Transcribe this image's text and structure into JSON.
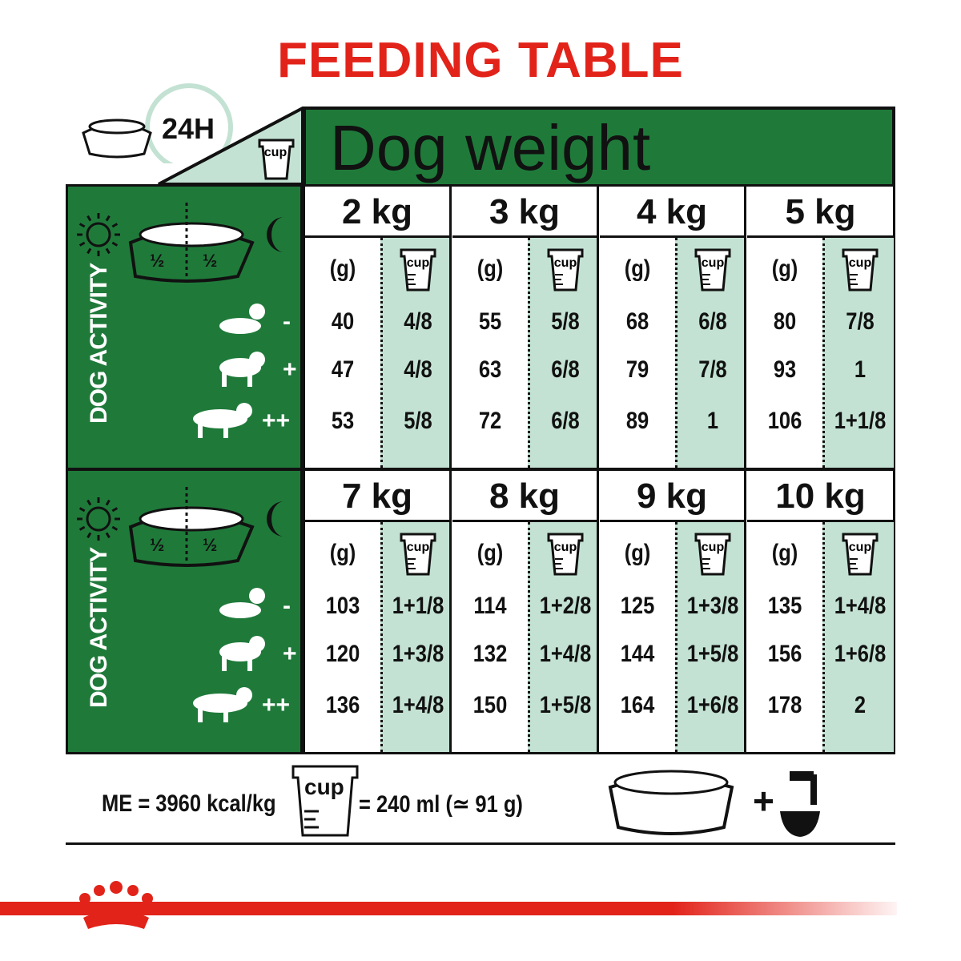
{
  "title": "FEEDING TABLE",
  "header": {
    "time_label": "24H",
    "dog_weight": "Dog weight",
    "cup_label": "cup"
  },
  "activity": {
    "label": "DOG ACTIVITY",
    "split": [
      "½",
      "½"
    ],
    "levels": [
      "-",
      "+",
      "++"
    ]
  },
  "units": {
    "grams": "(g)",
    "cup": "cup"
  },
  "blocks": [
    {
      "weights": [
        {
          "label": "2 kg",
          "grams": [
            "40",
            "47",
            "53"
          ],
          "cups": [
            "4/8",
            "4/8",
            "5/8"
          ]
        },
        {
          "label": "3 kg",
          "grams": [
            "55",
            "63",
            "72"
          ],
          "cups": [
            "5/8",
            "6/8",
            "6/8"
          ]
        },
        {
          "label": "4 kg",
          "grams": [
            "68",
            "79",
            "89"
          ],
          "cups": [
            "6/8",
            "7/8",
            "1"
          ]
        },
        {
          "label": "5 kg",
          "grams": [
            "80",
            "93",
            "106"
          ],
          "cups": [
            "7/8",
            "1",
            "1+1/8"
          ]
        }
      ]
    },
    {
      "weights": [
        {
          "label": "7 kg",
          "grams": [
            "103",
            "120",
            "136"
          ],
          "cups": [
            "1+1/8",
            "1+3/8",
            "1+4/8"
          ]
        },
        {
          "label": "8 kg",
          "grams": [
            "114",
            "132",
            "150"
          ],
          "cups": [
            "1+2/8",
            "1+4/8",
            "1+5/8"
          ]
        },
        {
          "label": "9 kg",
          "grams": [
            "125",
            "144",
            "164"
          ],
          "cups": [
            "1+3/8",
            "1+5/8",
            "1+6/8"
          ]
        },
        {
          "label": "10 kg",
          "grams": [
            "135",
            "156",
            "178"
          ],
          "cups": [
            "1+4/8",
            "1+6/8",
            "2"
          ]
        }
      ]
    }
  ],
  "footer": {
    "energy": "ME = 3960 kcal/kg",
    "cup_label": "cup",
    "cup_equiv": "= 240 ml (≃ 91 g)",
    "plus": "+"
  },
  "colors": {
    "brand_red": "#e2231a",
    "green": "#1f7a3a",
    "light_green": "#c3e2d3"
  }
}
